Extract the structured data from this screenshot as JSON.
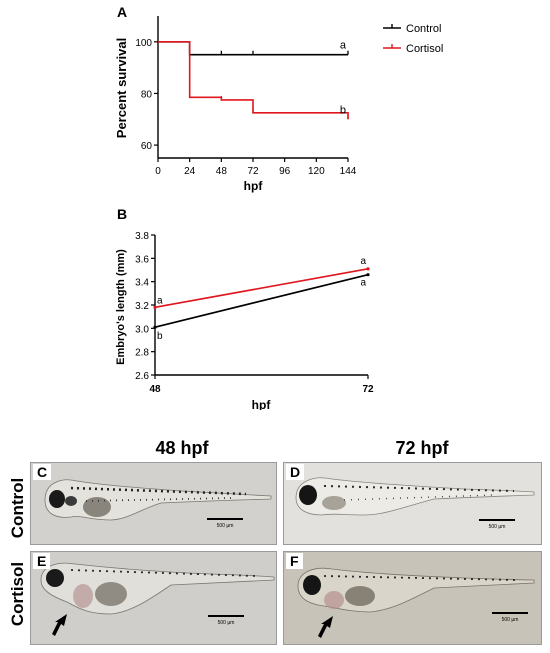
{
  "chart_data": [
    {
      "type": "line",
      "panel_label": "A",
      "xlabel": "hpf",
      "ylabel": "Percent survival",
      "xlim": [
        0,
        144
      ],
      "ylim": [
        55,
        110
      ],
      "x_ticks": [
        0,
        24,
        48,
        72,
        96,
        120,
        144
      ],
      "y_ticks": [
        60,
        80,
        100
      ],
      "step": true,
      "series": [
        {
          "name": "Control",
          "color": "#000000",
          "x": [
            0,
            24,
            48,
            72,
            144
          ],
          "y": [
            100,
            95,
            95,
            95,
            95
          ],
          "end_label": "a"
        },
        {
          "name": "Cortisol",
          "color": "#e0171f",
          "x": [
            0,
            24,
            48,
            72,
            144
          ],
          "y": [
            100,
            78.5,
            77.5,
            72.5,
            70
          ],
          "end_label": "b"
        }
      ],
      "legend": "top-right"
    },
    {
      "type": "line",
      "panel_label": "B",
      "xlabel": "hpf",
      "ylabel": "Embryo's length (mm)",
      "xlim": [
        48,
        72
      ],
      "ylim": [
        2.6,
        3.8
      ],
      "x_ticks": [
        "48",
        "72"
      ],
      "y_ticks": [
        "2.6",
        "2.8",
        "3.0",
        "3.2",
        "3.4",
        "3.6",
        "3.8"
      ],
      "series": [
        {
          "name": "Control",
          "color": "#000000",
          "x": [
            48,
            72
          ],
          "y": [
            3.01,
            3.46
          ],
          "labels": [
            "b",
            "a"
          ]
        },
        {
          "name": "Cortisol",
          "color": "#e0171f",
          "x": [
            48,
            72
          ],
          "y": [
            3.18,
            3.51
          ],
          "labels": [
            "a",
            "a"
          ]
        }
      ]
    }
  ],
  "images": {
    "col_headers": [
      "48 hpf",
      "72 hpf"
    ],
    "row_labels": [
      "Control",
      "Cortisol"
    ],
    "panels": [
      {
        "label": "C",
        "scale": "500 µm"
      },
      {
        "label": "D",
        "scale": "500 µm"
      },
      {
        "label": "E",
        "scale": "500 µm"
      },
      {
        "label": "F",
        "scale": "500 µm"
      }
    ]
  }
}
